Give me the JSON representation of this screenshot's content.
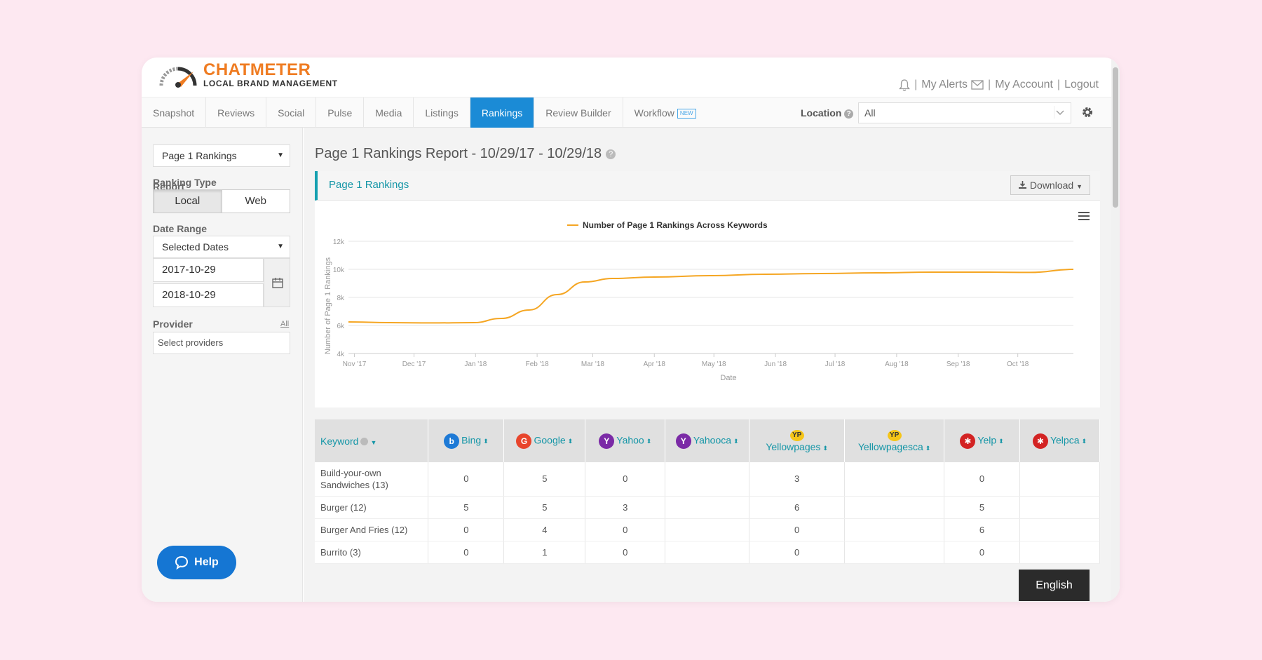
{
  "header": {
    "brand_name": "CHATMETER",
    "brand_tagline": "LOCAL BRAND MANAGEMENT",
    "links": {
      "alerts": "My Alerts",
      "account": "My Account",
      "logout": "Logout"
    }
  },
  "nav": {
    "tabs": [
      "Snapshot",
      "Reviews",
      "Social",
      "Pulse",
      "Media",
      "Listings",
      "Rankings",
      "Review Builder",
      "Workflow"
    ],
    "active_tab": "Rankings",
    "workflow_badge": "NEW",
    "location_label": "Location",
    "location_value": "All"
  },
  "sidebar": {
    "report_label": "Report",
    "report_value": "Page 1 Rankings",
    "ranking_type_label": "Ranking Type",
    "ranking_local": "Local",
    "ranking_web": "Web",
    "date_range_label": "Date Range",
    "date_range_value": "Selected Dates",
    "start_date": "2017-10-29",
    "end_date": "2018-10-29",
    "provider_label": "Provider",
    "provider_all": "All",
    "provider_placeholder": "Select providers",
    "help_label": "Help"
  },
  "main": {
    "report_title": "Page 1 Rankings Report - 10/29/17 - 10/29/18",
    "panel_title": "Page 1 Rankings",
    "download_label": "Download"
  },
  "chart_data": {
    "type": "line",
    "title": "",
    "legend": "Number of Page 1 Rankings Across Keywords",
    "xlabel": "Date",
    "ylabel": "Number of Page 1 Rankings",
    "x_ticks": [
      "Nov '17",
      "Dec '17",
      "Jan '18",
      "Feb '18",
      "Mar '18",
      "Apr '18",
      "May '18",
      "Jun '18",
      "Jul '18",
      "Aug '18",
      "Sep '18",
      "Oct '18"
    ],
    "y_ticks": [
      "4k",
      "6k",
      "8k",
      "10k",
      "12k"
    ],
    "ylim": [
      4000,
      12000
    ],
    "color": "#f5a623",
    "series": [
      {
        "name": "Number of Page 1 Rankings Across Keywords",
        "x": [
          "2017-10-29",
          "2017-11-19",
          "2017-12-10",
          "2017-12-31",
          "2018-01-14",
          "2018-01-28",
          "2018-02-11",
          "2018-02-25",
          "2018-03-11",
          "2018-04-01",
          "2018-04-29",
          "2018-05-27",
          "2018-06-24",
          "2018-07-22",
          "2018-08-19",
          "2018-09-16",
          "2018-10-07",
          "2018-10-29"
        ],
        "values": [
          6250,
          6200,
          6180,
          6200,
          6500,
          7100,
          8200,
          9100,
          9350,
          9450,
          9550,
          9650,
          9700,
          9750,
          9800,
          9800,
          9780,
          10000
        ]
      }
    ]
  },
  "table": {
    "keyword_header": "Keyword",
    "providers": [
      {
        "name": "Bing",
        "icon": "bing-icon",
        "color": "#1e7ad6",
        "glyph": "b"
      },
      {
        "name": "Google",
        "icon": "google-icon",
        "color": "#e8452c",
        "glyph": "G"
      },
      {
        "name": "Yahoo",
        "icon": "yahoo-icon",
        "color": "#7b2aa6",
        "glyph": "Y"
      },
      {
        "name": "Yahooca",
        "icon": "yahooca-icon",
        "color": "#7b2aa6",
        "glyph": "Y"
      },
      {
        "name": "Yellowpages",
        "icon": "yellowpages-icon",
        "color": "#f5c518",
        "glyph": "YP"
      },
      {
        "name": "Yellowpagesca",
        "icon": "yellowpagesca-icon",
        "color": "#f5c518",
        "glyph": "YP"
      },
      {
        "name": "Yelp",
        "icon": "yelp-icon",
        "color": "#d32323",
        "glyph": "✱"
      },
      {
        "name": "Yelpca",
        "icon": "yelpca-icon",
        "color": "#d32323",
        "glyph": "✱"
      }
    ],
    "rows": [
      {
        "keyword": "Build-your-own Sandwiches (13)",
        "cells": [
          "0",
          "5",
          "0",
          "",
          "3",
          "",
          "0",
          ""
        ]
      },
      {
        "keyword": "Burger (12)",
        "cells": [
          "5",
          "5",
          "3",
          "",
          "6",
          "",
          "5",
          ""
        ]
      },
      {
        "keyword": "Burger And Fries (12)",
        "cells": [
          "0",
          "4",
          "0",
          "",
          "0",
          "",
          "6",
          ""
        ]
      },
      {
        "keyword": "Burrito (3)",
        "cells": [
          "0",
          "1",
          "0",
          "",
          "0",
          "",
          "0",
          ""
        ]
      }
    ]
  },
  "language": "English"
}
